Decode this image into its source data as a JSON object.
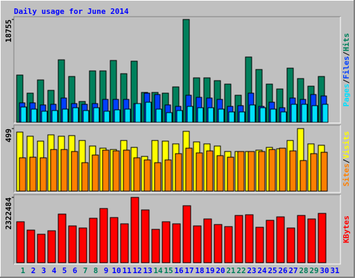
{
  "chart_data": {
    "type": "bar",
    "title": "Daily usage for June 2014",
    "separator": "/",
    "categories": [
      "1",
      "2",
      "3",
      "4",
      "5",
      "6",
      "7",
      "8",
      "9",
      "10",
      "11",
      "12",
      "13",
      "14",
      "15",
      "16",
      "17",
      "18",
      "19",
      "20",
      "21",
      "22",
      "23",
      "24",
      "25",
      "26",
      "27",
      "28",
      "29",
      "30",
      "31"
    ],
    "category_colors": [
      "#00805c",
      "#0000ff",
      "#0000ff",
      "#0000ff",
      "#0000ff",
      "#0000ff",
      "#00805c",
      "#00805c",
      "#0000ff",
      "#0000ff",
      "#0000ff",
      "#0000ff",
      "#0000ff",
      "#00805c",
      "#00805c",
      "#0000ff",
      "#0000ff",
      "#0000ff",
      "#0000ff",
      "#0000ff",
      "#00805c",
      "#00805c",
      "#0000ff",
      "#0000ff",
      "#0000ff",
      "#0000ff",
      "#0000ff",
      "#00805c",
      "#00805c",
      "#0000ff",
      "#0000ff"
    ],
    "panels": [
      {
        "ylim": [
          0,
          18755
        ],
        "yticks": [
          18755
        ],
        "series": [
          {
            "name": "Hits",
            "color": "#00805c",
            "values": [
              8620,
              5320,
              7730,
              5830,
              11400,
              8360,
              3800,
              9380,
              9380,
              11280,
              8870,
              11150,
              5450,
              5450,
              5320,
              6460,
              18755,
              8110,
              8110,
              7600,
              6970,
              4940,
              11910,
              9630,
              6970,
              6080,
              9880,
              7980,
              6590,
              8360,
              null
            ]
          },
          {
            "name": "Files",
            "color": "#0040ff",
            "values": [
              3550,
              3550,
              3170,
              3290,
              4430,
              3420,
              3290,
              3420,
              4180,
              4180,
              4180,
              3420,
              5320,
              5070,
              3170,
              2910,
              4940,
              4560,
              4430,
              4180,
              2910,
              3040,
              5320,
              2910,
              3670,
              2660,
              4430,
              4180,
              5070,
              4810,
              null
            ]
          },
          {
            "name": "Pages",
            "color": "#00e0ff",
            "values": [
              2790,
              2410,
              2030,
              2150,
              2410,
              2660,
              2150,
              2660,
              2030,
              2280,
              2410,
              3420,
              3670,
              2410,
              1770,
              2150,
              2910,
              2660,
              2660,
              2410,
              1900,
              1900,
              3170,
              2660,
              2410,
              1900,
              3290,
              3290,
              3040,
              3290,
              null
            ]
          }
        ]
      },
      {
        "ylim": [
          0,
          499
        ],
        "yticks": [
          499
        ],
        "series": [
          {
            "name": "Visits",
            "color": "#ffff00",
            "values": [
              471,
              438,
              399,
              449,
              438,
              443,
              404,
              360,
              343,
              332,
              404,
              349,
              277,
              404,
              399,
              377,
              477,
              393,
              377,
              360,
              316,
              316,
              316,
              327,
              349,
              338,
              404,
              499,
              377,
              366,
              null
            ]
          },
          {
            "name": "Sites",
            "color": "#ff8000",
            "values": [
              266,
              271,
              266,
              332,
              332,
              316,
              227,
              288,
              327,
              321,
              327,
              266,
              249,
              227,
              249,
              299,
              343,
              305,
              321,
              283,
              271,
              316,
              316,
              316,
              332,
              343,
              321,
              244,
              299,
              310,
              null
            ]
          }
        ]
      },
      {
        "ylim": [
          0,
          2322484
        ],
        "yticks": [
          2322484
        ],
        "series": [
          {
            "name": "KBytes",
            "color": "#ff0000",
            "values": [
              1457000,
              1160000,
              1013000,
              1136000,
              1729000,
              1309000,
              1235000,
              1581000,
              1927000,
              1606000,
              1383000,
              2322484,
              1877000,
              1186000,
              1457000,
              1383000,
              2026000,
              1309000,
              1556000,
              1358000,
              1284000,
              1680000,
              1705000,
              1260000,
              1507000,
              1630000,
              1235000,
              1680000,
              1556000,
              1754000,
              null
            ]
          }
        ]
      }
    ]
  }
}
